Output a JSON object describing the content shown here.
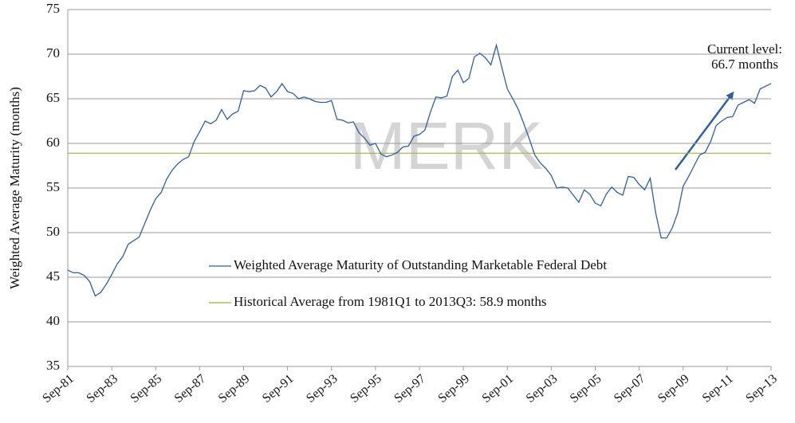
{
  "chart_data": {
    "type": "line",
    "y_label": "Weighted Average Maturity (months)",
    "watermark": "MERK",
    "annotation": [
      "Current level:",
      "66.7 months"
    ],
    "categories": [
      "Sep-81",
      null,
      null,
      null,
      null,
      null,
      null,
      null,
      "Sep-83",
      null,
      null,
      null,
      null,
      null,
      null,
      null,
      "Sep-85",
      null,
      null,
      null,
      null,
      null,
      null,
      null,
      "Sep-87",
      null,
      null,
      null,
      null,
      null,
      null,
      null,
      "Sep-89",
      null,
      null,
      null,
      null,
      null,
      null,
      null,
      "Sep-91",
      null,
      null,
      null,
      null,
      null,
      null,
      null,
      "Sep-93",
      null,
      null,
      null,
      null,
      null,
      null,
      null,
      "Sep-95",
      null,
      null,
      null,
      null,
      null,
      null,
      null,
      "Sep-97",
      null,
      null,
      null,
      null,
      null,
      null,
      null,
      "Sep-99",
      null,
      null,
      null,
      null,
      null,
      null,
      null,
      "Sep-01",
      null,
      null,
      null,
      null,
      null,
      null,
      null,
      "Sep-03",
      null,
      null,
      null,
      null,
      null,
      null,
      null,
      "Sep-05",
      null,
      null,
      null,
      null,
      null,
      null,
      null,
      "Sep-07",
      null,
      null,
      null,
      null,
      null,
      null,
      null,
      "Sep-09",
      null,
      null,
      null,
      null,
      null,
      null,
      null,
      "Sep-11",
      null,
      null,
      null,
      null,
      null,
      null,
      null,
      "Sep-13"
    ],
    "series": [
      {
        "name": "Weighted Average Maturity of Outstanding Marketable Federal Debt",
        "color": "#2f5f9e",
        "values": [
          45.8,
          45.5,
          45.5,
          45.2,
          44.5,
          42.9,
          43.3,
          44.2,
          45.3,
          46.5,
          47.3,
          48.7,
          49.1,
          49.5,
          51.0,
          52.5,
          53.8,
          54.5,
          56.0,
          57.0,
          57.7,
          58.2,
          58.5,
          60.2,
          61.3,
          62.5,
          62.2,
          62.6,
          63.8,
          62.7,
          63.3,
          63.6,
          65.9,
          65.8,
          65.9,
          66.5,
          66.2,
          65.2,
          65.8,
          66.7,
          65.8,
          65.6,
          65.0,
          65.2,
          65.0,
          64.7,
          64.6,
          64.6,
          64.8,
          62.7,
          62.6,
          62.3,
          62.4,
          61.2,
          60.6,
          59.8,
          60.0,
          58.8,
          58.5,
          58.7,
          59.0,
          59.6,
          59.7,
          60.8,
          61.0,
          61.5,
          63.5,
          65.2,
          65.1,
          65.3,
          67.5,
          68.2,
          66.8,
          67.3,
          69.7,
          70.1,
          69.6,
          68.8,
          71.0,
          68.5,
          66.1,
          65.0,
          63.8,
          62.2,
          60.5,
          58.7,
          57.8,
          57.2,
          56.4,
          55.0,
          55.1,
          55.0,
          54.2,
          53.4,
          54.8,
          54.3,
          53.3,
          53.0,
          54.3,
          55.1,
          54.5,
          54.2,
          56.3,
          56.2,
          55.4,
          54.8,
          56.1,
          52.2,
          49.4,
          49.4,
          50.5,
          52.2,
          55.2,
          56.3,
          57.5,
          58.7,
          59.0,
          60.2,
          62.0,
          62.5,
          62.9,
          63.0,
          64.3,
          64.6,
          64.9,
          64.5,
          66.1,
          66.4,
          66.7
        ]
      }
    ],
    "hlines": [
      {
        "name": "Historical Average from 1981Q1 to 2013Q3: 58.9 months",
        "color": "#a3b53c",
        "value": 58.9
      }
    ],
    "ylim": [
      35,
      75
    ],
    "yticks": [
      35,
      40,
      45,
      50,
      55,
      60,
      65,
      70,
      75
    ],
    "grid": true
  }
}
